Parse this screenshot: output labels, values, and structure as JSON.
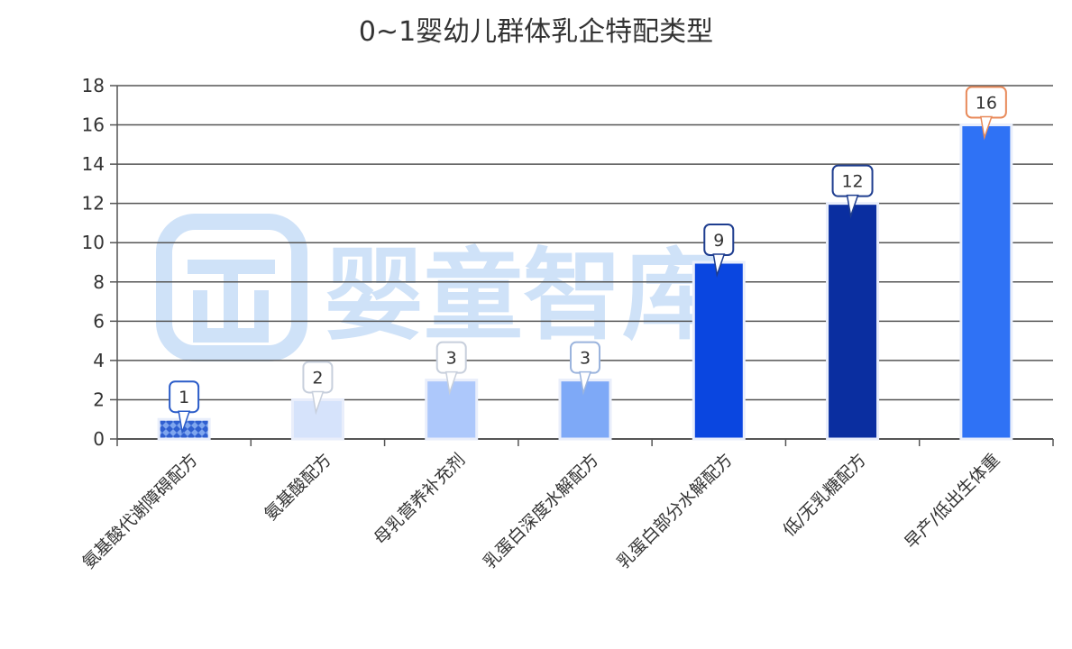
{
  "chart_data": {
    "type": "bar",
    "title": "0~1婴幼儿群体乳企特配类型",
    "xlabel": "",
    "ylabel": "",
    "ylim": [
      0,
      18
    ],
    "yticks": [
      0,
      2,
      4,
      6,
      8,
      10,
      12,
      14,
      16,
      18
    ],
    "grid": true,
    "categories": [
      "氨基酸代谢障碍配方",
      "氨基酸配方",
      "母乳营养补充剂",
      "乳蛋白深度水解配方",
      "乳蛋白部分水解配方",
      "低/无乳糖配方",
      "早产/低出生体重"
    ],
    "values": [
      1,
      2,
      3,
      3,
      9,
      12,
      16
    ],
    "colors": [
      "#4a7fe0",
      "#d6e3fb",
      "#adc8fb",
      "#7ea9f7",
      "#0a46e0",
      "#0a2ea0",
      "#2f72f5"
    ],
    "label_border_colors": [
      "#2a5bc8",
      "#c7cfdc",
      "#c7cfdc",
      "#9bb4dd",
      "#1e3d8f",
      "#1e3d8f",
      "#e88a5a"
    ]
  },
  "watermark": {
    "text": "婴童智库",
    "color": "#cfe2f8"
  }
}
